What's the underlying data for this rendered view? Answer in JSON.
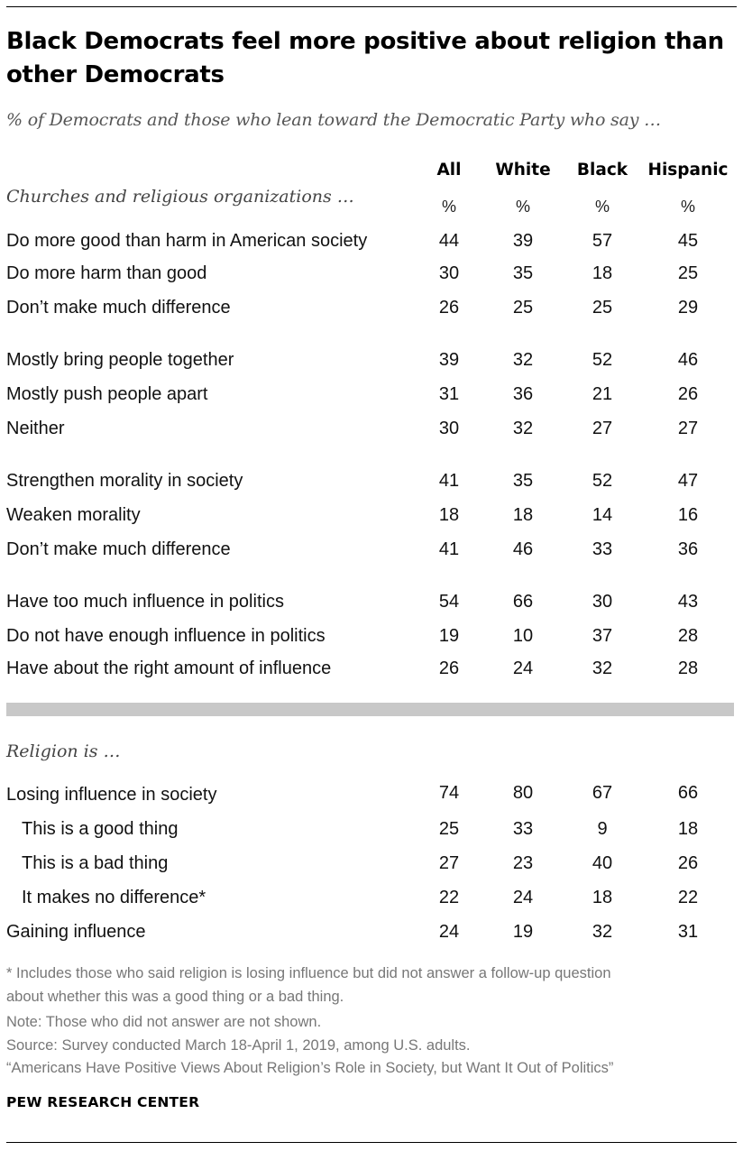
{
  "title": "Black Democrats feel more positive about religion than other Democrats",
  "subtitle": "% of Democrats and those who lean toward the Democratic Party who say …",
  "chart_data": {
    "type": "table",
    "columns": [
      "All",
      "White",
      "Black",
      "Hispanic"
    ],
    "unit_row": [
      "%",
      "%",
      "%",
      "%"
    ],
    "sections": [
      {
        "label": "Churches and religious organizations …",
        "groups": [
          [
            {
              "label": "Do more good than harm in American society",
              "values": [
                44,
                39,
                57,
                45
              ]
            },
            {
              "label": "Do more harm than good",
              "values": [
                30,
                35,
                18,
                25
              ]
            },
            {
              "label": "Don’t make much difference",
              "values": [
                26,
                25,
                25,
                29
              ]
            }
          ],
          [
            {
              "label": "Mostly bring people together",
              "values": [
                39,
                32,
                52,
                46
              ]
            },
            {
              "label": "Mostly push people apart",
              "values": [
                31,
                36,
                21,
                26
              ]
            },
            {
              "label": "Neither",
              "values": [
                30,
                32,
                27,
                27
              ]
            }
          ],
          [
            {
              "label": "Strengthen morality in society",
              "values": [
                41,
                35,
                52,
                47
              ]
            },
            {
              "label": "Weaken morality",
              "values": [
                18,
                18,
                14,
                16
              ]
            },
            {
              "label": "Don’t make much difference",
              "values": [
                41,
                46,
                33,
                36
              ]
            }
          ],
          [
            {
              "label": "Have too much influence in politics",
              "values": [
                54,
                66,
                30,
                43
              ]
            },
            {
              "label": "Do not have enough influence in politics",
              "values": [
                19,
                10,
                37,
                28
              ]
            },
            {
              "label": "Have about the right amount of influence",
              "values": [
                26,
                24,
                32,
                28
              ]
            }
          ]
        ]
      },
      {
        "label": "Religion is …",
        "groups": [
          [
            {
              "label": "Losing influence in society",
              "values": [
                74,
                80,
                67,
                66
              ],
              "indent": false
            },
            {
              "label": "This is a good thing",
              "values": [
                25,
                33,
                9,
                18
              ],
              "indent": true
            },
            {
              "label": "This is a bad thing",
              "values": [
                27,
                23,
                40,
                26
              ],
              "indent": true
            },
            {
              "label": "It makes no difference*",
              "values": [
                22,
                24,
                18,
                22
              ],
              "indent": true
            },
            {
              "label": "Gaining influence",
              "values": [
                24,
                19,
                32,
                31
              ],
              "indent": false
            }
          ]
        ]
      }
    ]
  },
  "notes": [
    "* Includes those who said religion is losing influence but did not answer a follow-up question",
    "about whether this was a good thing or a bad thing.",
    "Note: Those who did not answer are not shown.",
    "Source: Survey conducted March 18-April 1, 2019, among U.S. adults.",
    "“Americans Have Positive Views About Religion’s Role in Society, but Want It Out of Politics”"
  ],
  "brand": "PEW RESEARCH CENTER"
}
